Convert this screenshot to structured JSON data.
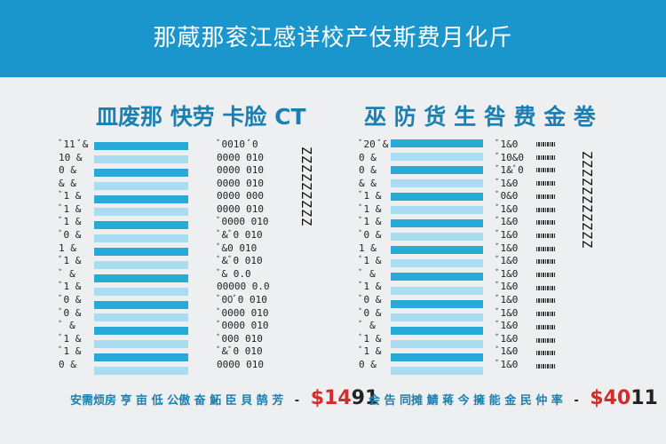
{
  "header": {
    "title": "那蔵那衮江感详校产伎斯费月化斤"
  },
  "left_panel": {
    "title": "皿废那 快劳 卡脸 CT",
    "row_labels": [
      "ﾞ11 ﾞ&",
      "10 &",
      "0 &",
      "& &",
      "ﾞ1 &",
      "ﾞ1 &",
      "ﾞ1 &",
      "ﾞ0 &",
      "1 &",
      "ﾞ1 &",
      "ﾞ &",
      "ﾞ1 &",
      "ﾞ0 &",
      "ﾞ0 &",
      "ﾞ &",
      "ﾞ1 &",
      "ﾞ1 &",
      "0 &"
    ],
    "row_values": [
      "ﾞ0010 ﾞ0",
      "0000 010",
      "0000 010",
      "0000 010",
      "0000 000",
      "0000 010",
      "ﾞ0000 010",
      "ﾞ&ﾞ0 010",
      "ﾞ&0 010",
      "ﾞ&ﾞ0 010",
      "ﾞ& 0.0",
      "00000 0.0",
      "ﾞ00ﾞ0 010",
      "ﾞ0000 010",
      "ﾞ0000 010",
      "ﾞ000 010",
      "ﾞ&ﾞ0 010",
      "0000 010"
    ],
    "vertical_text": "ZZZZZZZZZ",
    "footer_text": "安需烦房 亨 亩 低 公傲 奋 鮖 臣 貝 鹄 芳",
    "footer_price": "$14",
    "footer_price_suffix": "91"
  },
  "right_panel": {
    "title": "巫 防 货  生 咎 费 金 巻",
    "row_labels": [
      "ﾞ20 ﾞ&",
      "0 &",
      "0 &",
      "& &",
      "ﾞ1 &",
      "ﾞ1 &",
      "ﾞ1 &",
      "ﾞ0 &",
      "1 &",
      "ﾞ1 &",
      "ﾞ &",
      "ﾞ1 &",
      "ﾞ0 &",
      "ﾞ0 &",
      "ﾞ &",
      "ﾞ1 &",
      "ﾞ1 &",
      "0 &"
    ],
    "row_values": [
      "ﾞ1&0",
      "ﾞ10&0",
      "ﾞ1&ﾞ0",
      "ﾞ1&0",
      "ﾞ0&0",
      "ﾞ1&0",
      "ﾞ1&0",
      "ﾞ1&0",
      "ﾞ1&0",
      "ﾞ1&0",
      "ﾞ1&0",
      "ﾞ1&0",
      "ﾞ1&0",
      "ﾞ1&0",
      "ﾞ1&0",
      "ﾞ1&0",
      "ﾞ1&0",
      "ﾞ1&0"
    ],
    "vertical_text": "ZZZZZZZZZZZ",
    "footer_text": "会 告 同摊 鯖 蒋 今  擁 能 金 民 仲 率",
    "footer_price": "$40",
    "footer_price_suffix": "11"
  },
  "colors": {
    "banner": "#1b96cc",
    "bar_dark": "#28aad9",
    "bar_light": "#a9dcf0",
    "accent_text": "#1a7fb2",
    "price": "#d42b2b"
  }
}
